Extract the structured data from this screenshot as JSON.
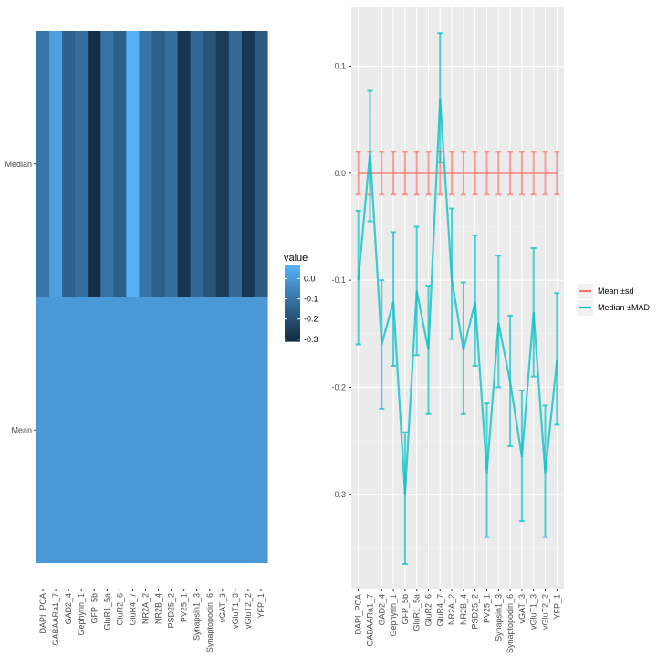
{
  "chart_data": [
    {
      "type": "heatmap",
      "categories": [
        "DAPI_PCA",
        "GABAARa1_7",
        "GAD2_4",
        "Gephyrin_1",
        "GFP_5b",
        "GluR1_5a",
        "GluR2_6",
        "GluR4_7",
        "NR2A_2",
        "NR2B_4",
        "PSD25_2",
        "PV25_1",
        "Synapsin1_3",
        "Synaptopodin_6",
        "vGAT_3",
        "vGluT1_3",
        "vGluT2_2",
        "YFP_1"
      ],
      "rows": [
        "Median",
        "Mean"
      ],
      "values": {
        "Median": [
          -0.1,
          0.02,
          -0.16,
          -0.12,
          -0.3,
          -0.11,
          -0.165,
          0.07,
          -0.1,
          -0.165,
          -0.12,
          -0.28,
          -0.14,
          -0.195,
          -0.265,
          -0.13,
          -0.28,
          -0.175
        ],
        "Mean": [
          0,
          0,
          0,
          0,
          0,
          0,
          0,
          0,
          0,
          0,
          0,
          0,
          0,
          0,
          0,
          0,
          0,
          0
        ]
      },
      "colorbar": {
        "title": "value",
        "ticks": [
          "0.0",
          "-0.1",
          "-0.2",
          "-0.3"
        ],
        "range": [
          -0.31,
          0.07
        ],
        "low_color": "#132B43",
        "high_color": "#56B1F7"
      }
    },
    {
      "type": "line",
      "categories": [
        "DAPI_PCA",
        "GABAARa1_7",
        "GAD2_4",
        "Gephyrin_1",
        "GFP_5b",
        "GluR1_5a",
        "GluR2_6",
        "GluR4_7",
        "NR2A_2",
        "NR2B_4",
        "PSD25_2",
        "PV25_1",
        "Synapsin1_3",
        "Synaptopodin_6",
        "vGAT_3",
        "vGluT1_3",
        "vGluT2_2",
        "YFP_1"
      ],
      "series": [
        {
          "name": "Mean ±sd",
          "color": "#F8766D",
          "values": [
            0,
            0,
            0,
            0,
            0,
            0,
            0,
            0,
            0,
            0,
            0,
            0,
            0,
            0,
            0,
            0,
            0,
            0
          ],
          "lower": [
            -0.02,
            -0.02,
            -0.02,
            -0.02,
            -0.02,
            -0.02,
            -0.02,
            -0.02,
            -0.02,
            -0.02,
            -0.02,
            -0.02,
            -0.02,
            -0.02,
            -0.02,
            -0.02,
            -0.02,
            -0.02
          ],
          "upper": [
            0.02,
            0.02,
            0.02,
            0.02,
            0.02,
            0.02,
            0.02,
            0.02,
            0.02,
            0.02,
            0.02,
            0.02,
            0.02,
            0.02,
            0.02,
            0.02,
            0.02,
            0.02
          ]
        },
        {
          "name": "Median ±MAD",
          "color": "#00BFC4",
          "values": [
            -0.1,
            0.02,
            -0.16,
            -0.12,
            -0.3,
            -0.11,
            -0.165,
            0.07,
            -0.1,
            -0.165,
            -0.12,
            -0.28,
            -0.14,
            -0.195,
            -0.265,
            -0.13,
            -0.28,
            -0.175
          ],
          "lower": [
            -0.16,
            -0.045,
            -0.22,
            -0.18,
            -0.365,
            -0.17,
            -0.225,
            0.01,
            -0.155,
            -0.225,
            -0.18,
            -0.34,
            -0.2,
            -0.255,
            -0.325,
            -0.19,
            -0.34,
            -0.235
          ],
          "upper": [
            -0.035,
            0.077,
            -0.1,
            -0.055,
            -0.242,
            -0.05,
            -0.105,
            0.131,
            -0.033,
            -0.102,
            -0.058,
            -0.215,
            -0.077,
            -0.133,
            -0.203,
            -0.07,
            -0.217,
            -0.112
          ]
        }
      ],
      "y_ticks": [
        "0.1",
        "0.0",
        "-0.1",
        "-0.2",
        "-0.3"
      ],
      "ylim": [
        -0.388,
        0.155
      ],
      "grid": true,
      "legend": "right"
    }
  ]
}
